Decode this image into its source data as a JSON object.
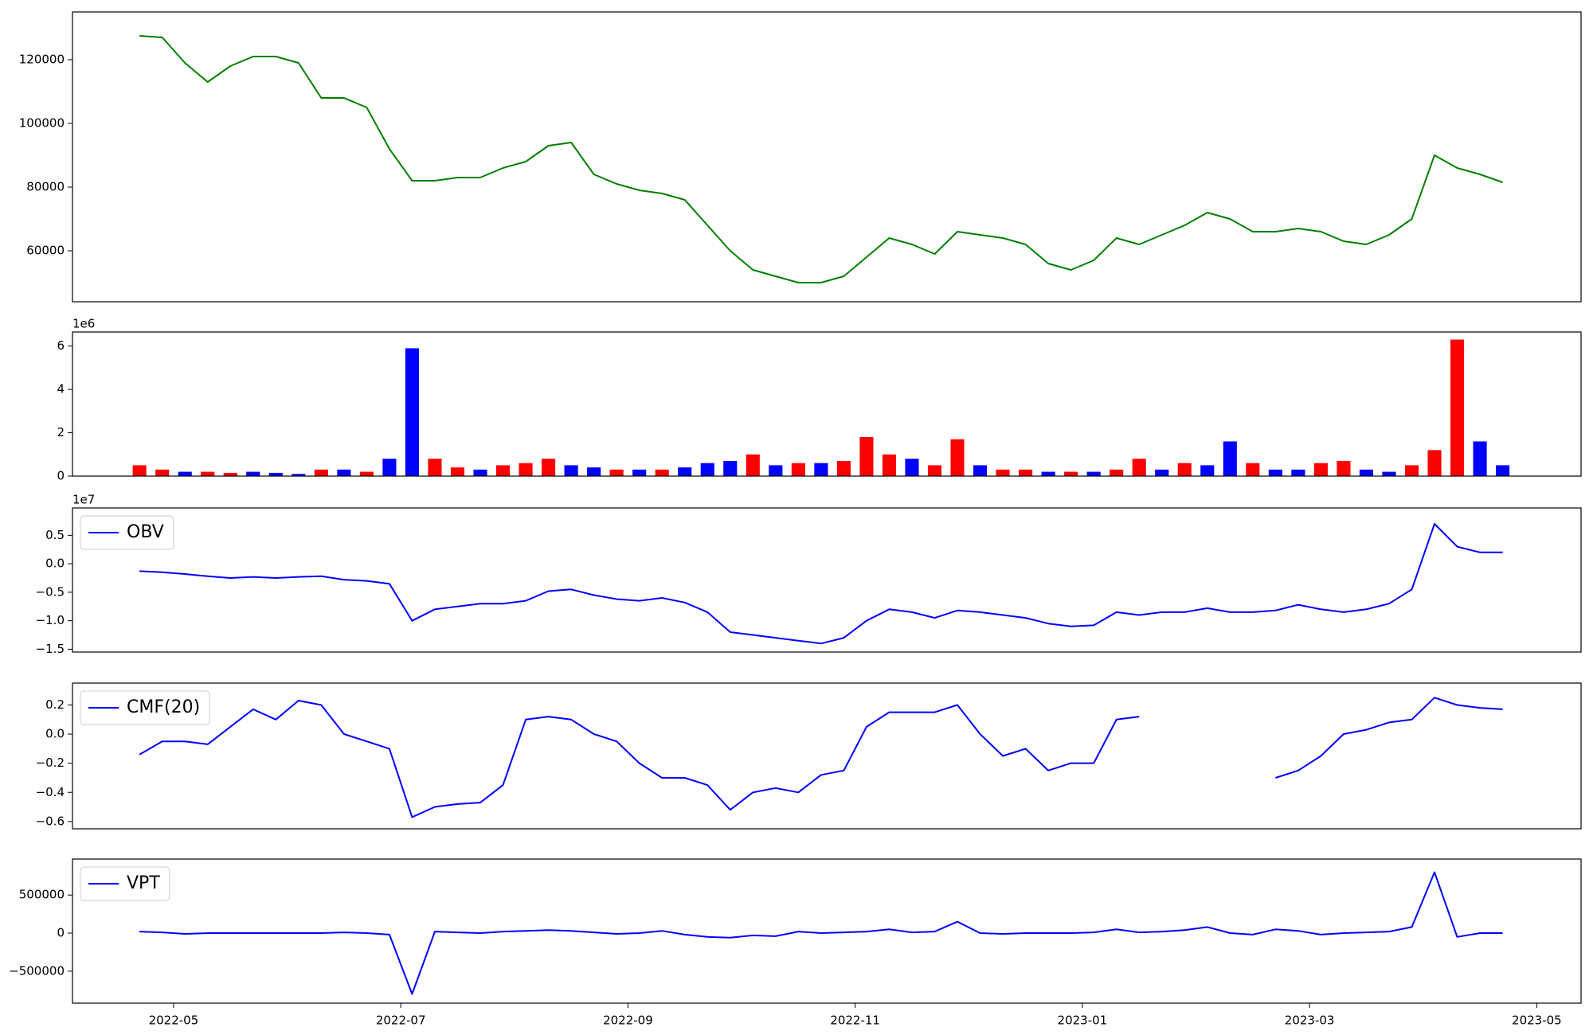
{
  "chart_data": [
    {
      "type": "line",
      "xlim": [
        4.11,
        17.39
      ],
      "ylim": [
        44000,
        135000
      ],
      "yticks": [
        60000,
        80000,
        100000,
        120000
      ],
      "x": [
        4.7,
        4.9,
        5.1,
        5.3,
        5.5,
        5.7,
        5.9,
        6.1,
        6.3,
        6.5,
        6.7,
        6.9,
        7.1,
        7.3,
        7.5,
        7.7,
        7.9,
        8.1,
        8.3,
        8.5,
        8.7,
        8.9,
        9.1,
        9.3,
        9.5,
        9.7,
        9.9,
        10.1,
        10.3,
        10.5,
        10.7,
        10.9,
        11.1,
        11.3,
        11.5,
        11.7,
        11.9,
        12.1,
        12.3,
        12.5,
        12.7,
        12.9,
        13.1,
        13.3,
        13.5,
        13.7,
        13.9,
        14.1,
        14.3,
        14.5,
        14.7,
        14.9,
        15.1,
        15.3,
        15.5,
        15.7,
        15.9,
        16.1,
        16.3,
        16.5,
        16.7
      ],
      "series": [
        {
          "color": "green",
          "values": [
            127500,
            127000,
            119000,
            113000,
            118000,
            121000,
            121000,
            119000,
            108000,
            108000,
            105000,
            92000,
            82000,
            82000,
            83000,
            83000,
            86000,
            88000,
            93000,
            94000,
            84000,
            81000,
            79000,
            78000,
            76000,
            68000,
            60000,
            54000,
            52000,
            50000,
            50000,
            52000,
            58000,
            64000,
            62000,
            59000,
            66000,
            65000,
            64000,
            62000,
            56000,
            54000,
            57000,
            64000,
            62000,
            65000,
            68000,
            72000,
            70000,
            66000,
            66000,
            67000,
            66000,
            63000,
            62000,
            65000,
            70000,
            90000,
            86000,
            84000,
            81500
          ]
        }
      ]
    },
    {
      "type": "bar",
      "xlim": [
        4.11,
        17.39
      ],
      "ylim": [
        0,
        6.65
      ],
      "yticks": [
        0,
        2,
        4,
        6
      ],
      "offset_label": "1e6",
      "x": [
        4.7,
        4.9,
        5.1,
        5.3,
        5.5,
        5.7,
        5.9,
        6.1,
        6.3,
        6.5,
        6.7,
        6.9,
        7.1,
        7.3,
        7.5,
        7.7,
        7.9,
        8.1,
        8.3,
        8.5,
        8.7,
        8.9,
        9.1,
        9.3,
        9.5,
        9.7,
        9.9,
        10.1,
        10.3,
        10.5,
        10.7,
        10.9,
        11.1,
        11.3,
        11.5,
        11.7,
        11.9,
        12.1,
        12.3,
        12.5,
        12.7,
        12.9,
        13.1,
        13.3,
        13.5,
        13.7,
        13.9,
        14.1,
        14.3,
        14.5,
        14.7,
        14.9,
        15.1,
        15.3,
        15.5,
        15.7,
        15.9,
        16.1,
        16.3,
        16.5,
        16.7
      ],
      "series": [
        {
          "values": [
            0.5,
            0.3,
            0.2,
            0.2,
            0.15,
            0.2,
            0.15,
            0.1,
            0.3,
            0.3,
            0.2,
            0.8,
            5.9,
            0.8,
            0.4,
            0.3,
            0.5,
            0.6,
            0.8,
            0.5,
            0.4,
            0.3,
            0.3,
            0.3,
            0.4,
            0.6,
            0.7,
            1.0,
            0.5,
            0.6,
            0.6,
            0.7,
            1.8,
            1.0,
            0.8,
            0.5,
            1.7,
            0.5,
            0.3,
            0.3,
            0.2,
            0.2,
            0.2,
            0.3,
            0.8,
            0.3,
            0.6,
            0.5,
            1.6,
            0.6,
            0.3,
            0.3,
            0.6,
            0.7,
            0.3,
            0.2,
            0.5,
            1.2,
            6.3,
            1.6,
            0.5
          ],
          "colors": [
            "red",
            "red",
            "blue",
            "red",
            "red",
            "blue",
            "blue",
            "blue",
            "red",
            "blue",
            "red",
            "blue",
            "blue",
            "red",
            "red",
            "blue",
            "red",
            "red",
            "red",
            "blue",
            "blue",
            "red",
            "blue",
            "red",
            "blue",
            "blue",
            "blue",
            "red",
            "blue",
            "red",
            "blue",
            "red",
            "red",
            "red",
            "blue",
            "red",
            "red",
            "blue",
            "red",
            "red",
            "blue",
            "red",
            "blue",
            "red",
            "red",
            "blue",
            "red",
            "blue",
            "blue",
            "red",
            "blue",
            "blue",
            "red",
            "red",
            "blue",
            "blue",
            "red",
            "red",
            "red",
            "blue",
            "blue"
          ]
        }
      ]
    },
    {
      "type": "line",
      "xlim": [
        4.11,
        17.39
      ],
      "ylim": [
        -1.55,
        0.98
      ],
      "offset_label": "1e7",
      "legend": "upper left",
      "yticks": [
        {
          "value": -1.5,
          "label": "−1.5"
        },
        {
          "value": -1.0,
          "label": "−1.0"
        },
        {
          "value": -0.5,
          "label": "−0.5"
        },
        {
          "value": 0,
          "label": "0.0"
        },
        0.5
      ],
      "x": [
        4.7,
        4.9,
        5.1,
        5.3,
        5.5,
        5.7,
        5.9,
        6.1,
        6.3,
        6.5,
        6.7,
        6.9,
        7.1,
        7.3,
        7.5,
        7.7,
        7.9,
        8.1,
        8.3,
        8.5,
        8.7,
        8.9,
        9.1,
        9.3,
        9.5,
        9.7,
        9.9,
        10.1,
        10.3,
        10.5,
        10.7,
        10.9,
        11.1,
        11.3,
        11.5,
        11.7,
        11.9,
        12.1,
        12.3,
        12.5,
        12.7,
        12.9,
        13.1,
        13.3,
        13.5,
        13.7,
        13.9,
        14.1,
        14.3,
        14.5,
        14.7,
        14.9,
        15.1,
        15.3,
        15.5,
        15.7,
        15.9,
        16.1,
        16.3,
        16.5,
        16.7
      ],
      "series": [
        {
          "name": "OBV",
          "color": "blue",
          "values": [
            -0.13,
            -0.15,
            -0.18,
            -0.22,
            -0.25,
            -0.23,
            -0.25,
            -0.23,
            -0.22,
            -0.28,
            -0.3,
            -0.35,
            -1.0,
            -0.8,
            -0.75,
            -0.7,
            -0.7,
            -0.65,
            -0.48,
            -0.45,
            -0.55,
            -0.62,
            -0.65,
            -0.6,
            -0.68,
            -0.85,
            -1.2,
            -1.25,
            -1.3,
            -1.35,
            -1.4,
            -1.3,
            -1.0,
            -0.8,
            -0.85,
            -0.95,
            -0.82,
            -0.85,
            -0.9,
            -0.95,
            -1.05,
            -1.1,
            -1.08,
            -0.85,
            -0.9,
            -0.85,
            -0.85,
            -0.78,
            -0.85,
            -0.85,
            -0.82,
            -0.72,
            -0.8,
            -0.85,
            -0.8,
            -0.7,
            -0.45,
            0.7,
            0.3,
            0.2,
            0.2
          ]
        }
      ]
    },
    {
      "type": "line",
      "xlim": [
        4.11,
        17.39
      ],
      "ylim": [
        -0.65,
        0.35
      ],
      "legend": "upper left",
      "yticks": [
        {
          "value": -0.6,
          "label": "−0.6"
        },
        {
          "value": -0.4,
          "label": "−0.4"
        },
        {
          "value": -0.2,
          "label": "−0.2"
        },
        {
          "value": 0,
          "label": "0.0"
        },
        0.2
      ],
      "x": [
        4.7,
        4.9,
        5.1,
        5.3,
        5.5,
        5.7,
        5.9,
        6.1,
        6.3,
        6.5,
        6.7,
        6.9,
        7.1,
        7.3,
        7.5,
        7.7,
        7.9,
        8.1,
        8.3,
        8.5,
        8.7,
        8.9,
        9.1,
        9.3,
        9.5,
        9.7,
        9.9,
        10.1,
        10.3,
        10.5,
        10.7,
        10.9,
        11.1,
        11.3,
        11.5,
        11.7,
        11.9,
        12.1,
        12.3,
        12.5,
        12.7,
        12.9,
        13.1,
        13.3,
        13.5,
        13.7,
        13.9,
        14.1,
        14.3,
        14.5,
        14.7,
        14.9,
        15.1,
        15.3,
        15.5,
        15.7,
        15.9,
        16.1,
        16.3,
        16.5,
        16.7
      ],
      "series": [
        {
          "name": "CMF(20)",
          "color": "blue",
          "values": [
            -0.14,
            -0.05,
            -0.05,
            -0.07,
            0.05,
            0.17,
            0.1,
            0.23,
            0.2,
            0.0,
            -0.05,
            -0.1,
            -0.57,
            -0.5,
            -0.48,
            -0.47,
            -0.35,
            0.1,
            0.12,
            0.1,
            0.0,
            -0.05,
            -0.2,
            -0.3,
            -0.3,
            -0.35,
            -0.52,
            -0.4,
            -0.37,
            -0.4,
            -0.28,
            -0.25,
            0.05,
            0.15,
            0.15,
            0.15,
            0.2,
            0.0,
            -0.15,
            -0.1,
            -0.25,
            -0.2,
            -0.2,
            0.1,
            0.12,
            null,
            null,
            null,
            null,
            null,
            -0.3,
            -0.25,
            -0.15,
            0.0,
            0.03,
            0.08,
            0.1,
            0.25,
            0.2,
            0.18,
            0.17
          ]
        }
      ]
    },
    {
      "type": "line",
      "xlim": [
        4.11,
        17.39
      ],
      "ylim": [
        -920000,
        973000
      ],
      "legend": "upper left",
      "yticks": [
        {
          "value": -500000,
          "label": "−500000"
        },
        0,
        500000
      ],
      "xticks": [
        {
          "value": 5,
          "label": "2022-05"
        },
        {
          "value": 7,
          "label": "2022-07"
        },
        {
          "value": 9,
          "label": "2022-09"
        },
        {
          "value": 11,
          "label": "2022-11"
        },
        {
          "value": 13,
          "label": "2023-01"
        },
        {
          "value": 15,
          "label": "2023-03"
        },
        {
          "value": 17,
          "label": "2023-05"
        }
      ],
      "x": [
        4.7,
        4.9,
        5.1,
        5.3,
        5.5,
        5.7,
        5.9,
        6.1,
        6.3,
        6.5,
        6.7,
        6.9,
        7.1,
        7.3,
        7.5,
        7.7,
        7.9,
        8.1,
        8.3,
        8.5,
        8.7,
        8.9,
        9.1,
        9.3,
        9.5,
        9.7,
        9.9,
        10.1,
        10.3,
        10.5,
        10.7,
        10.9,
        11.1,
        11.3,
        11.5,
        11.7,
        11.9,
        12.1,
        12.3,
        12.5,
        12.7,
        12.9,
        13.1,
        13.3,
        13.5,
        13.7,
        13.9,
        14.1,
        14.3,
        14.5,
        14.7,
        14.9,
        15.1,
        15.3,
        15.5,
        15.7,
        15.9,
        16.1,
        16.3,
        16.5,
        16.7
      ],
      "series": [
        {
          "name": "VPT",
          "color": "blue",
          "values": [
            20000,
            10000,
            -10000,
            0,
            0,
            0,
            0,
            0,
            0,
            10000,
            0,
            -20000,
            -800000,
            20000,
            10000,
            0,
            20000,
            30000,
            40000,
            30000,
            10000,
            -10000,
            0,
            30000,
            -20000,
            -50000,
            -60000,
            -30000,
            -40000,
            20000,
            0,
            10000,
            20000,
            50000,
            10000,
            20000,
            150000,
            0,
            -10000,
            0,
            0,
            0,
            10000,
            50000,
            10000,
            20000,
            40000,
            80000,
            0,
            -20000,
            50000,
            30000,
            -20000,
            0,
            10000,
            20000,
            80000,
            800000,
            -50000,
            0,
            0
          ]
        }
      ]
    }
  ]
}
